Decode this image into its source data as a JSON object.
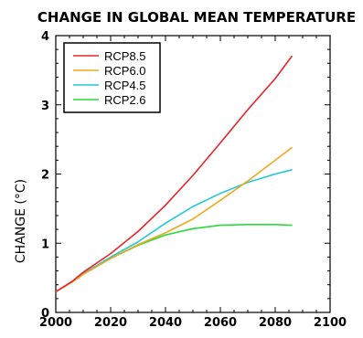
{
  "chart_data": {
    "type": "line",
    "title": "CHANGE IN GLOBAL MEAN TEMPERATURE",
    "xlabel": "",
    "ylabel": "CHANGE (°C)",
    "xlim": [
      2000,
      2100
    ],
    "ylim": [
      0,
      4
    ],
    "xticks": [
      2000,
      2020,
      2040,
      2060,
      2080,
      2100
    ],
    "yticks": [
      0,
      1,
      2,
      3,
      4
    ],
    "grid": false,
    "legend_position": "top-left",
    "series": [
      {
        "name": "RCP8.5",
        "color": "#e8242c",
        "x": [
          2000,
          2006,
          2010,
          2020,
          2030,
          2040,
          2050,
          2060,
          2070,
          2080,
          2086
        ],
        "y": [
          0.3,
          0.45,
          0.58,
          0.85,
          1.17,
          1.55,
          1.98,
          2.45,
          2.93,
          3.38,
          3.7
        ]
      },
      {
        "name": "RCP6.0",
        "color": "#f0a81e",
        "x": [
          2000,
          2006,
          2010,
          2020,
          2030,
          2040,
          2050,
          2060,
          2070,
          2080,
          2086
        ],
        "y": [
          0.3,
          0.44,
          0.55,
          0.78,
          0.98,
          1.15,
          1.35,
          1.62,
          1.9,
          2.2,
          2.38
        ]
      },
      {
        "name": "RCP4.5",
        "color": "#22c8d8",
        "x": [
          2000,
          2006,
          2010,
          2020,
          2030,
          2040,
          2050,
          2060,
          2070,
          2080,
          2086
        ],
        "y": [
          0.3,
          0.44,
          0.56,
          0.8,
          1.02,
          1.29,
          1.53,
          1.72,
          1.88,
          2.0,
          2.06
        ]
      },
      {
        "name": "RCP2.6",
        "color": "#28dc3c",
        "x": [
          2000,
          2006,
          2010,
          2020,
          2030,
          2040,
          2050,
          2060,
          2070,
          2080,
          2086
        ],
        "y": [
          0.3,
          0.44,
          0.55,
          0.78,
          0.97,
          1.12,
          1.21,
          1.26,
          1.27,
          1.27,
          1.26
        ]
      }
    ]
  }
}
